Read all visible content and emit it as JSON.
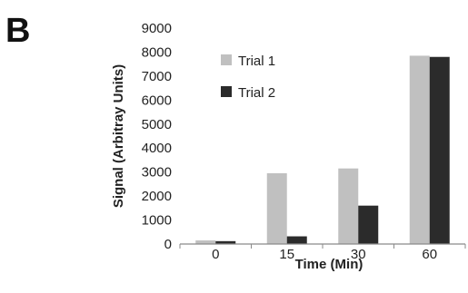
{
  "panel_label": "B",
  "chart_data": {
    "type": "bar",
    "categories": [
      "0",
      "15",
      "30",
      "60"
    ],
    "series": [
      {
        "name": "Trial 1",
        "values": [
          150,
          2950,
          3150,
          7850
        ],
        "color": "#c0c0c0"
      },
      {
        "name": "Trial 2",
        "values": [
          120,
          320,
          1600,
          7800
        ],
        "color": "#2b2b2b"
      }
    ],
    "xlabel": "Time (Min)",
    "ylabel": "Signal (Arbitray Units)",
    "ylim": [
      0,
      9000
    ],
    "yticks": [
      0,
      1000,
      2000,
      3000,
      4000,
      5000,
      6000,
      7000,
      8000,
      9000
    ],
    "grid": false,
    "legend_position": "top-left"
  }
}
